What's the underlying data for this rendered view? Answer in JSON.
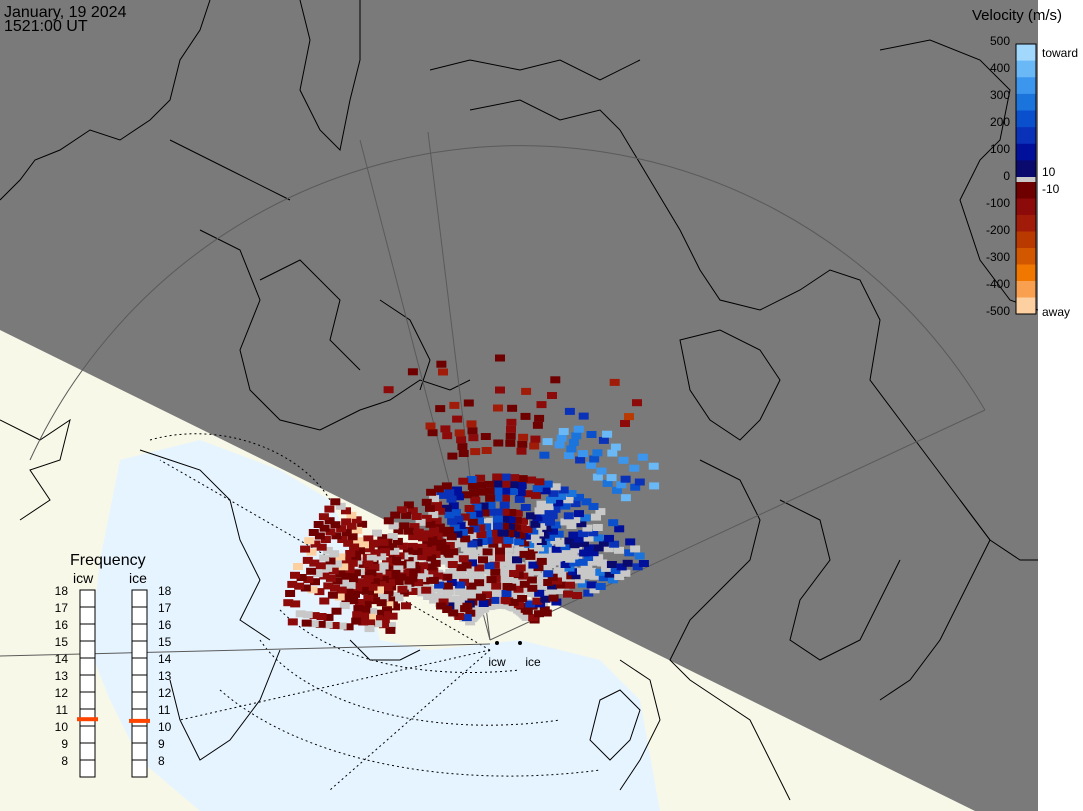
{
  "header": {
    "date": "January, 19 2024",
    "time": "1521:00 UT"
  },
  "legend": {
    "title": "Velocity (m/s)",
    "ticks": [
      "500",
      "400",
      "300",
      "200",
      "100",
      "0",
      "-100",
      "-200",
      "-300",
      "-400",
      "-500"
    ],
    "label_pos_small": "10",
    "label_neg_small": "-10",
    "label_toward": "toward",
    "label_away": "away",
    "colors_toward": [
      "#0a0a6e",
      "#00109a",
      "#0a32b8",
      "#0a50cc",
      "#1a74dc",
      "#3c96ee",
      "#6ab8f6",
      "#a2d8fc"
    ],
    "colors_away": [
      "#6e0000",
      "#8c0a0a",
      "#a01c08",
      "#b83a00",
      "#d25800",
      "#f07800",
      "#f8a050",
      "#fcd0a0"
    ],
    "color_zero": "#c8c8c8"
  },
  "frequency": {
    "title": "Frequency",
    "radars": [
      "icw",
      "ice"
    ],
    "scale": [
      "18",
      "17",
      "16",
      "15",
      "14",
      "13",
      "12",
      "11",
      "10",
      "9",
      "8"
    ],
    "icw_mhz": 10.9,
    "ice_mhz": 10.8,
    "marker_color": "#ff4400"
  },
  "stations": {
    "icw": "icw",
    "ice": "ice"
  },
  "map": {
    "night_color": "#7a7a7a",
    "day_land_color": "#f8f8e8",
    "day_ocean_color": "#e6f4ff",
    "ground_scatter_color": "#c8c8c8"
  }
}
